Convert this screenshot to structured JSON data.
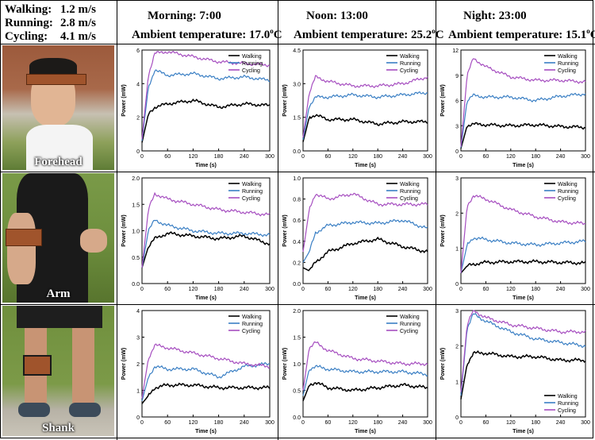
{
  "speeds": {
    "walking": {
      "label": "Walking:",
      "value": "1.2 m/s"
    },
    "running": {
      "label": "Running:",
      "value": "2.8 m/s"
    },
    "cycling": {
      "label": "Cycling:",
      "value": "4.1 m/s"
    }
  },
  "columns": [
    {
      "title": "Morning: 7:00",
      "temp_prefix": "Ambient temperature: 17.0",
      "temp_suffix": "C",
      "degree": "o"
    },
    {
      "title": "Noon: 13:00",
      "temp_prefix": "Ambient temperature: 25.2",
      "temp_suffix": "C",
      "degree": "o"
    },
    {
      "title": "Night: 23:00",
      "temp_prefix": "Ambient temperature: 15.1",
      "temp_suffix": "C",
      "degree": "o"
    }
  ],
  "rows": [
    {
      "label": "Forehead"
    },
    {
      "label": "Arm"
    },
    {
      "label": "Shank"
    }
  ],
  "colors": {
    "walking": "#000000",
    "running": "#3a7fc4",
    "cycling": "#a64ec0"
  },
  "chart_data": [
    {
      "type": "line",
      "x": [
        0,
        15,
        30,
        60,
        120,
        180,
        240,
        300
      ],
      "ylim": [
        0,
        6
      ],
      "yticks": [
        0,
        2,
        4,
        6
      ],
      "xticks": [
        0,
        60,
        120,
        180,
        240,
        300
      ],
      "xlabel": "Time (s)",
      "ylabel": "Power (mW)",
      "legend_pos": "top-right",
      "series": [
        {
          "name": "Walking",
          "values": [
            0.5,
            2.2,
            2.6,
            2.8,
            3.0,
            2.6,
            2.8,
            2.7
          ]
        },
        {
          "name": "Running",
          "values": [
            0.6,
            3.8,
            4.8,
            4.5,
            4.6,
            4.3,
            4.4,
            4.2
          ]
        },
        {
          "name": "Cycling",
          "values": [
            0.7,
            4.5,
            5.8,
            5.9,
            5.6,
            5.3,
            5.2,
            5.1
          ]
        }
      ]
    },
    {
      "type": "line",
      "x": [
        0,
        15,
        30,
        60,
        120,
        180,
        240,
        300
      ],
      "ylim": [
        0,
        4.5
      ],
      "yticks": [
        0.0,
        1.5,
        3.0,
        4.5
      ],
      "xticks": [
        0,
        60,
        120,
        180,
        240,
        300
      ],
      "xlabel": "Time (s)",
      "ylabel": "Power (mW)",
      "legend_pos": "top-right",
      "series": [
        {
          "name": "Walking",
          "values": [
            0.4,
            1.5,
            1.6,
            1.4,
            1.4,
            1.2,
            1.3,
            1.3
          ]
        },
        {
          "name": "Running",
          "values": [
            0.5,
            2.0,
            2.4,
            2.4,
            2.5,
            2.4,
            2.5,
            2.6
          ]
        },
        {
          "name": "Cycling",
          "values": [
            0.6,
            2.6,
            3.3,
            3.1,
            2.9,
            2.9,
            3.0,
            3.3
          ]
        }
      ]
    },
    {
      "type": "line",
      "x": [
        0,
        15,
        30,
        60,
        120,
        180,
        240,
        300
      ],
      "ylim": [
        0,
        12
      ],
      "yticks": [
        0,
        3,
        6,
        9,
        12
      ],
      "xticks": [
        0,
        60,
        120,
        180,
        240,
        300
      ],
      "xlabel": "Time (s)",
      "ylabel": "Power (mW)",
      "legend_pos": "top-right",
      "series": [
        {
          "name": "Walking",
          "values": [
            0.3,
            3.0,
            3.2,
            3.1,
            3.0,
            3.1,
            2.9,
            2.8
          ]
        },
        {
          "name": "Running",
          "values": [
            0.4,
            6.0,
            6.6,
            6.4,
            6.4,
            6.0,
            6.5,
            6.8
          ]
        },
        {
          "name": "Cycling",
          "values": [
            0.5,
            9.0,
            11.0,
            10.0,
            8.8,
            8.4,
            8.4,
            8.2
          ]
        }
      ]
    },
    {
      "type": "line",
      "x": [
        0,
        15,
        30,
        60,
        120,
        180,
        240,
        300
      ],
      "ylim": [
        0,
        2.0
      ],
      "yticks": [
        0.0,
        0.5,
        1.0,
        1.5,
        2.0
      ],
      "xticks": [
        0,
        60,
        120,
        180,
        240,
        300
      ],
      "xlabel": "Time (s)",
      "ylabel": "Power (mW)",
      "legend_pos": "top-right",
      "series": [
        {
          "name": "Walking",
          "values": [
            0.3,
            0.7,
            0.85,
            0.95,
            0.9,
            0.85,
            0.9,
            0.75
          ]
        },
        {
          "name": "Running",
          "values": [
            0.3,
            1.0,
            1.2,
            1.1,
            1.0,
            0.95,
            0.95,
            0.92
          ]
        },
        {
          "name": "Cycling",
          "values": [
            0.3,
            1.4,
            1.7,
            1.6,
            1.5,
            1.4,
            1.35,
            1.3
          ]
        }
      ]
    },
    {
      "type": "line",
      "x": [
        0,
        15,
        30,
        60,
        120,
        180,
        240,
        300
      ],
      "ylim": [
        0,
        1.0
      ],
      "yticks": [
        0.0,
        0.2,
        0.4,
        0.6,
        0.8,
        1.0
      ],
      "xticks": [
        0,
        60,
        120,
        180,
        240,
        300
      ],
      "xlabel": "Time (s)",
      "ylabel": "Power (mW)",
      "legend_pos": "top-right",
      "series": [
        {
          "name": "Walking",
          "values": [
            0.15,
            0.12,
            0.2,
            0.3,
            0.38,
            0.42,
            0.35,
            0.3
          ]
        },
        {
          "name": "Running",
          "values": [
            0.2,
            0.3,
            0.48,
            0.55,
            0.58,
            0.57,
            0.6,
            0.52
          ]
        },
        {
          "name": "Cycling",
          "values": [
            0.3,
            0.7,
            0.85,
            0.8,
            0.85,
            0.75,
            0.75,
            0.75
          ]
        }
      ]
    },
    {
      "type": "line",
      "x": [
        0,
        15,
        30,
        60,
        120,
        180,
        240,
        300
      ],
      "ylim": [
        0,
        3
      ],
      "yticks": [
        0,
        1,
        2,
        3
      ],
      "xticks": [
        0,
        60,
        120,
        180,
        240,
        300
      ],
      "xlabel": "Time (s)",
      "ylabel": "Power (mW)",
      "legend_pos": "top-right",
      "series": [
        {
          "name": "Walking",
          "values": [
            0.3,
            0.5,
            0.55,
            0.6,
            0.62,
            0.62,
            0.6,
            0.58
          ]
        },
        {
          "name": "Running",
          "values": [
            0.3,
            1.1,
            1.3,
            1.25,
            1.15,
            1.1,
            1.15,
            1.2
          ]
        },
        {
          "name": "Cycling",
          "values": [
            0.3,
            2.2,
            2.5,
            2.4,
            2.1,
            1.9,
            1.75,
            1.7
          ]
        }
      ]
    },
    {
      "type": "line",
      "x": [
        0,
        15,
        30,
        60,
        120,
        180,
        240,
        300
      ],
      "ylim": [
        0,
        4
      ],
      "yticks": [
        0,
        1,
        2,
        3,
        4
      ],
      "xticks": [
        0,
        60,
        120,
        180,
        240,
        300
      ],
      "xlabel": "Time (s)",
      "ylabel": "Power (mW)",
      "legend_pos": "top-right",
      "series": [
        {
          "name": "Walking",
          "values": [
            0.5,
            0.8,
            1.1,
            1.2,
            1.2,
            1.1,
            1.1,
            1.1
          ]
        },
        {
          "name": "Running",
          "values": [
            0.6,
            1.5,
            1.9,
            1.8,
            1.8,
            1.5,
            1.9,
            2.0
          ]
        },
        {
          "name": "Cycling",
          "values": [
            0.7,
            2.2,
            2.7,
            2.6,
            2.4,
            2.2,
            2.0,
            1.9
          ]
        }
      ]
    },
    {
      "type": "line",
      "x": [
        0,
        15,
        30,
        60,
        120,
        180,
        240,
        300
      ],
      "ylim": [
        0,
        2.0
      ],
      "yticks": [
        0.0,
        0.5,
        1.0,
        1.5,
        2.0
      ],
      "xticks": [
        0,
        60,
        120,
        180,
        240,
        300
      ],
      "xlabel": "Time (s)",
      "ylabel": "Power (mW)",
      "legend_pos": "top-right",
      "series": [
        {
          "name": "Walking",
          "values": [
            0.3,
            0.6,
            0.65,
            0.55,
            0.5,
            0.55,
            0.6,
            0.55
          ]
        },
        {
          "name": "Running",
          "values": [
            0.4,
            0.9,
            0.95,
            0.9,
            0.85,
            0.85,
            0.85,
            0.8
          ]
        },
        {
          "name": "Cycling",
          "values": [
            0.5,
            1.3,
            1.4,
            1.25,
            1.1,
            1.05,
            1.0,
            1.0
          ]
        }
      ]
    },
    {
      "type": "line",
      "x": [
        0,
        15,
        30,
        60,
        120,
        180,
        240,
        300
      ],
      "ylim": [
        0,
        3
      ],
      "yticks": [
        0,
        1,
        2,
        3
      ],
      "xticks": [
        0,
        60,
        120,
        180,
        240,
        300
      ],
      "xlabel": "Time (s)",
      "ylabel": "Power (mW)",
      "legend_pos": "bottom-right",
      "series": [
        {
          "name": "Walking",
          "values": [
            0.5,
            1.5,
            1.8,
            1.8,
            1.7,
            1.7,
            1.6,
            1.6
          ]
        },
        {
          "name": "Running",
          "values": [
            0.6,
            2.5,
            2.9,
            2.7,
            2.4,
            2.2,
            2.1,
            2.0
          ]
        },
        {
          "name": "Cycling",
          "values": [
            0.7,
            2.6,
            3.0,
            2.8,
            2.6,
            2.5,
            2.4,
            2.4
          ]
        }
      ]
    }
  ]
}
